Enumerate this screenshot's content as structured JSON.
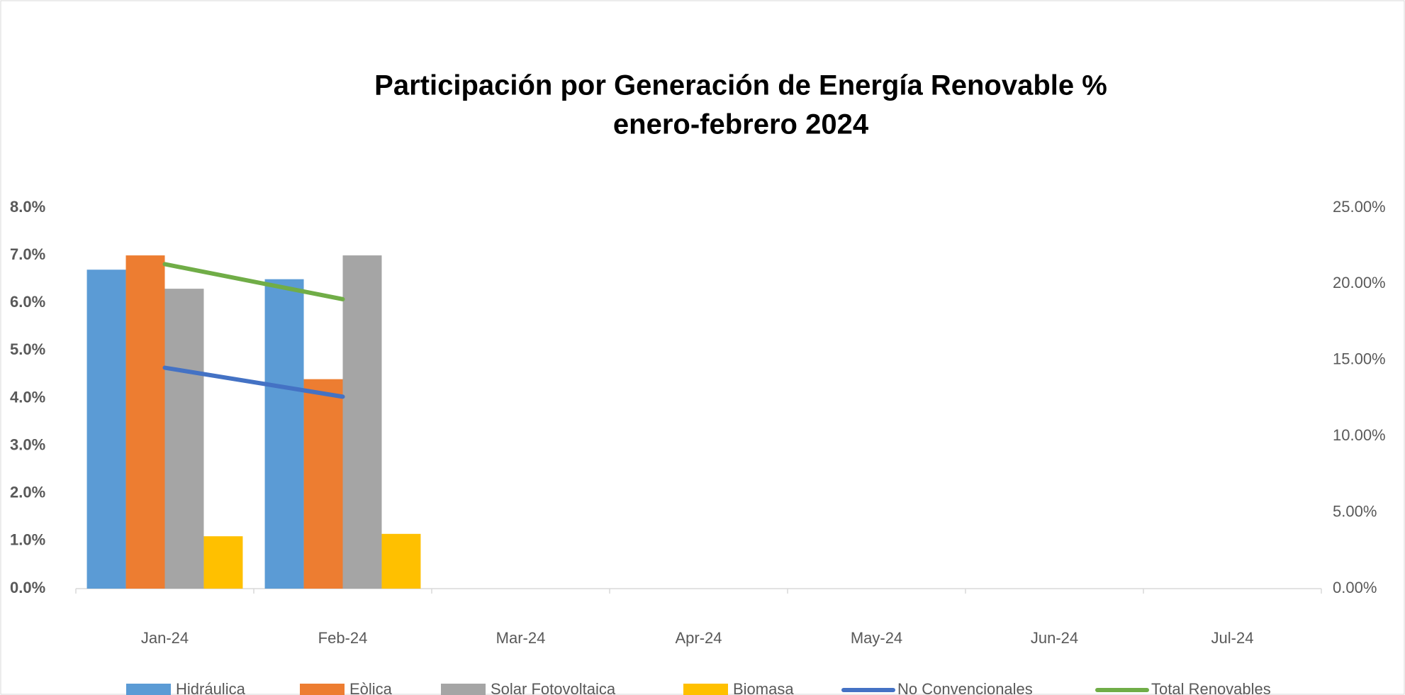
{
  "chart_data": {
    "type": "bar",
    "title": "Participación por Generación de Energía Renovable  %",
    "subtitle": "enero-febrero 2024",
    "categories": [
      "Jan-24",
      "Feb-24",
      "Mar-24",
      "Apr-24",
      "May-24",
      "Jun-24",
      "Jul-24"
    ],
    "series": [
      {
        "name": "Hidráulica",
        "color": "#5b9bd5",
        "type": "bar",
        "values": [
          6.7,
          6.5,
          null,
          null,
          null,
          null,
          null
        ]
      },
      {
        "name": "Eòlica",
        "color": "#ed7d31",
        "type": "bar",
        "values": [
          7.0,
          4.4,
          null,
          null,
          null,
          null,
          null
        ]
      },
      {
        "name": "Solar Fotovoltaica",
        "color": "#a5a5a5",
        "type": "bar",
        "values": [
          6.3,
          7.0,
          null,
          null,
          null,
          null,
          null
        ]
      },
      {
        "name": "Biomasa",
        "color": "#ffc000",
        "type": "bar",
        "values": [
          1.1,
          1.15,
          null,
          null,
          null,
          null,
          null
        ]
      },
      {
        "name": "No Convencionales",
        "color": "#4472c4",
        "type": "line",
        "axis": "y2",
        "values": [
          14.5,
          12.6,
          null,
          null,
          null,
          null,
          null
        ]
      },
      {
        "name": "Total Renovables",
        "color": "#70ad47",
        "type": "line",
        "axis": "y2",
        "values": [
          21.3,
          19.0,
          null,
          null,
          null,
          null,
          null
        ]
      }
    ],
    "ylim": [
      0,
      8
    ],
    "yticks": [
      {
        "value": 0,
        "label": "0.0%"
      },
      {
        "value": 1,
        "label": "1.0%"
      },
      {
        "value": 2,
        "label": "2.0%"
      },
      {
        "value": 3,
        "label": "3.0%"
      },
      {
        "value": 4,
        "label": "4.0%"
      },
      {
        "value": 5,
        "label": "5.0%"
      },
      {
        "value": 6,
        "label": "6.0%"
      },
      {
        "value": 7,
        "label": "7.0%"
      },
      {
        "value": 8,
        "label": "8.0%"
      }
    ],
    "y2lim": [
      0,
      25
    ],
    "y2ticks": [
      {
        "value": 0,
        "label": "0.00%"
      },
      {
        "value": 5,
        "label": "5.00%"
      },
      {
        "value": 10,
        "label": "10.00%"
      },
      {
        "value": 15,
        "label": "15.00%"
      },
      {
        "value": 20,
        "label": "20.00%"
      },
      {
        "value": 25,
        "label": "25.00%"
      }
    ],
    "grid": false,
    "legend": "bottom"
  }
}
